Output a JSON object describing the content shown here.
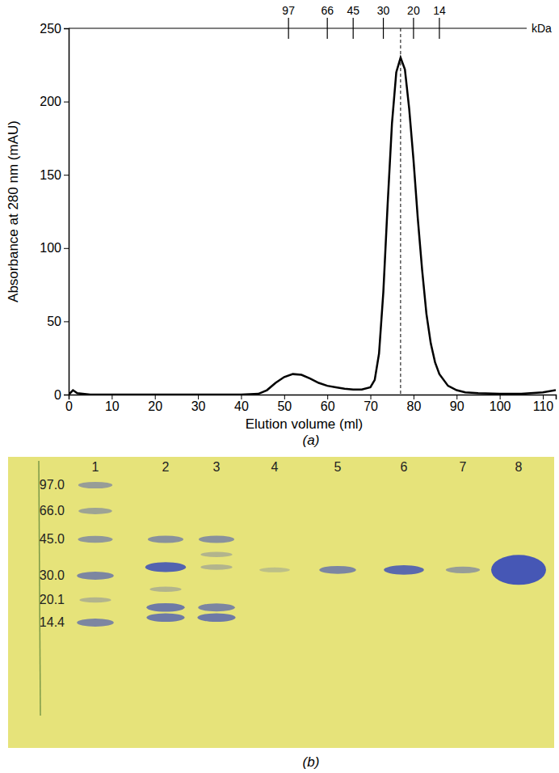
{
  "chart_data": {
    "type": "line",
    "x_label": "Elution volume (ml)",
    "y_label": "Absorbance at 280 nm (mAU)",
    "panel_label": "(a)",
    "xlim": [
      0,
      113
    ],
    "xticks": [
      0,
      10,
      20,
      30,
      40,
      50,
      60,
      70,
      80,
      90,
      100,
      110
    ],
    "ylim": [
      0,
      250
    ],
    "yticks": [
      0,
      50,
      100,
      150,
      200,
      250
    ],
    "color": "#000000",
    "x": [
      0,
      1,
      2,
      5,
      10,
      20,
      30,
      40,
      44,
      46,
      48,
      50,
      52,
      54,
      56,
      58,
      60,
      62,
      64,
      66,
      68,
      70,
      71,
      72,
      73,
      74,
      75,
      76,
      77,
      78,
      79,
      80,
      81,
      82,
      83,
      84,
      85,
      86,
      88,
      90,
      92,
      95,
      100,
      105,
      110,
      113
    ],
    "values": [
      0,
      3,
      1,
      0,
      0,
      0,
      0,
      0,
      0.5,
      3,
      8,
      12,
      14,
      13.5,
      11,
      8,
      6,
      5,
      4,
      3.5,
      3.5,
      5,
      10,
      28,
      70,
      130,
      185,
      220,
      230,
      222,
      195,
      160,
      120,
      85,
      55,
      35,
      22,
      14,
      6,
      3,
      1.5,
      1,
      0.5,
      0.5,
      1.5,
      3
    ],
    "mw_markers": {
      "unit": "kDa",
      "labels": [
        97,
        66,
        45,
        30,
        20,
        14
      ],
      "x": [
        51,
        60,
        66,
        73,
        80,
        86
      ]
    },
    "peak_x": 77
  },
  "gel": {
    "panel_label": "(b)",
    "lanes": [
      "1",
      "2",
      "3",
      "4",
      "5",
      "6",
      "7",
      "8"
    ],
    "marker_labels": [
      "97.0",
      "66.0",
      "45.0",
      "30.0",
      "20.1",
      "14.4"
    ],
    "bands": [
      {
        "lane": "1",
        "kda": 97,
        "amount": 0.4
      },
      {
        "lane": "1",
        "kda": 66,
        "amount": 0.35
      },
      {
        "lane": "1",
        "kda": 45,
        "amount": 0.45
      },
      {
        "lane": "1",
        "kda": 30,
        "amount": 0.6
      },
      {
        "lane": "1",
        "kda": 20.1,
        "amount": 0.2
      },
      {
        "lane": "1",
        "kda": 14.4,
        "amount": 0.6
      },
      {
        "lane": "2",
        "kda": 45,
        "amount": 0.5
      },
      {
        "lane": "2",
        "kda": 33,
        "amount": 0.9
      },
      {
        "lane": "2",
        "kda": 24,
        "amount": 0.2
      },
      {
        "lane": "2",
        "kda": 18,
        "amount": 0.7
      },
      {
        "lane": "2",
        "kda": 15.5,
        "amount": 0.7
      },
      {
        "lane": "3",
        "kda": 45,
        "amount": 0.5
      },
      {
        "lane": "3",
        "kda": 38,
        "amount": 0.2
      },
      {
        "lane": "3",
        "kda": 33,
        "amount": 0.2
      },
      {
        "lane": "3",
        "kda": 18,
        "amount": 0.6
      },
      {
        "lane": "3",
        "kda": 15.5,
        "amount": 0.7
      },
      {
        "lane": "4",
        "kda": 32,
        "amount": 0.12
      },
      {
        "lane": "5",
        "kda": 32,
        "amount": 0.6
      },
      {
        "lane": "6",
        "kda": 32,
        "amount": 0.85
      },
      {
        "lane": "7",
        "kda": 32,
        "amount": 0.4
      },
      {
        "lane": "8",
        "kda": 32,
        "amount": 1.0
      }
    ]
  }
}
